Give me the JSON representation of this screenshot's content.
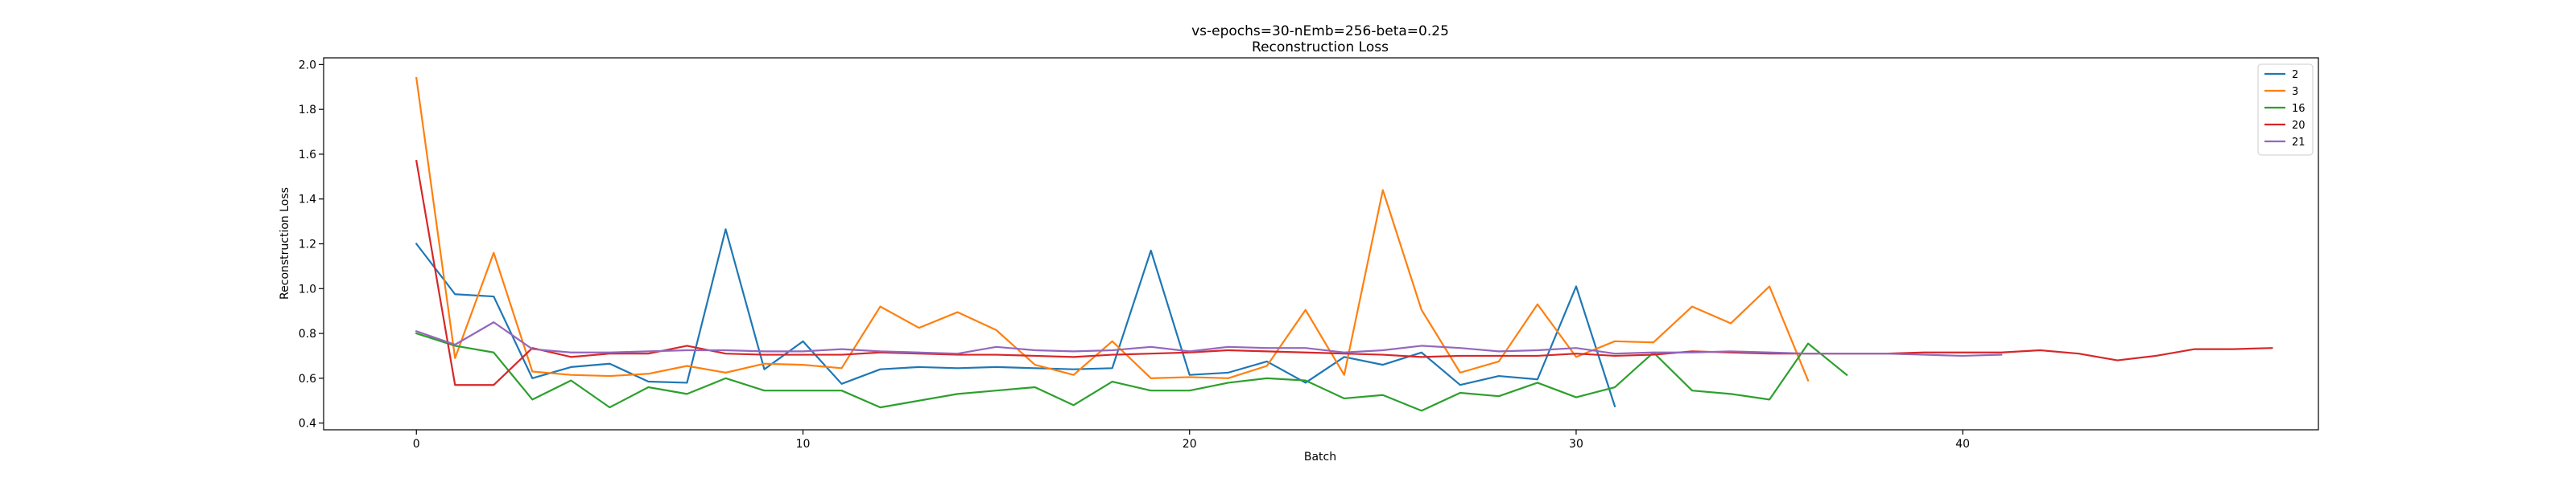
{
  "chart_data": {
    "type": "line",
    "title": "vs-epochs=30-nEmb=256-beta=0.25",
    "subtitle": "Reconstruction Loss",
    "xlabel": "Batch",
    "ylabel": "Reconstruction Loss",
    "xlim": [
      -2.4,
      49.2
    ],
    "ylim": [
      0.37,
      2.03
    ],
    "xticks": [
      0,
      10,
      20,
      30,
      40
    ],
    "yticks": [
      0.4,
      0.6,
      0.8,
      1.0,
      1.2,
      1.4,
      1.6,
      1.8,
      2.0
    ],
    "ytick_labels": [
      "0.4",
      "0.6",
      "0.8",
      "1.0",
      "1.2",
      "1.4",
      "1.6",
      "1.8",
      "2.0"
    ],
    "grid": false,
    "legend_position": "top-right",
    "series": [
      {
        "name": "2",
        "color": "#1f77b4",
        "values": [
          1.2,
          0.975,
          0.965,
          0.6,
          0.65,
          0.665,
          0.585,
          0.58,
          1.265,
          0.64,
          0.765,
          0.575,
          0.64,
          0.65,
          0.645,
          0.65,
          0.645,
          0.64,
          0.645,
          1.17,
          0.615,
          0.625,
          0.675,
          0.58,
          0.695,
          0.66,
          0.715,
          0.57,
          0.61,
          0.595,
          1.01,
          0.475
        ]
      },
      {
        "name": "3",
        "color": "#ff7f0e",
        "values": [
          1.94,
          0.69,
          1.16,
          0.63,
          0.615,
          0.61,
          0.62,
          0.655,
          0.625,
          0.665,
          0.66,
          0.645,
          0.92,
          0.825,
          0.895,
          0.815,
          0.66,
          0.615,
          0.765,
          0.6,
          0.605,
          0.6,
          0.655,
          0.905,
          0.615,
          1.44,
          0.905,
          0.625,
          0.675,
          0.93,
          0.695,
          0.765,
          0.76,
          0.92,
          0.845,
          1.01,
          0.59
        ]
      },
      {
        "name": "16",
        "color": "#2ca02c",
        "values": [
          0.8,
          0.745,
          0.715,
          0.505,
          0.59,
          0.47,
          0.56,
          0.53,
          0.6,
          0.545,
          0.545,
          0.545,
          0.47,
          0.5,
          0.53,
          0.545,
          0.56,
          0.48,
          0.585,
          0.545,
          0.545,
          0.58,
          0.6,
          0.59,
          0.51,
          0.525,
          0.455,
          0.535,
          0.52,
          0.58,
          0.515,
          0.56,
          0.715,
          0.545,
          0.53,
          0.505,
          0.755,
          0.615
        ]
      },
      {
        "name": "20",
        "color": "#d62728",
        "values": [
          1.57,
          0.57,
          0.57,
          0.735,
          0.695,
          0.71,
          0.71,
          0.745,
          0.71,
          0.705,
          0.705,
          0.705,
          0.715,
          0.71,
          0.705,
          0.705,
          0.7,
          0.695,
          0.705,
          0.71,
          0.715,
          0.725,
          0.72,
          0.715,
          0.71,
          0.705,
          0.695,
          0.7,
          0.7,
          0.7,
          0.71,
          0.7,
          0.705,
          0.72,
          0.715,
          0.71,
          0.71,
          0.71,
          0.71,
          0.715,
          0.715,
          0.715,
          0.725,
          0.71,
          0.68,
          0.7,
          0.73,
          0.73,
          0.735
        ]
      },
      {
        "name": "21",
        "color": "#9467bd",
        "values": [
          0.81,
          0.75,
          0.85,
          0.73,
          0.715,
          0.715,
          0.72,
          0.725,
          0.725,
          0.72,
          0.72,
          0.73,
          0.72,
          0.715,
          0.71,
          0.74,
          0.725,
          0.72,
          0.725,
          0.74,
          0.72,
          0.74,
          0.735,
          0.735,
          0.715,
          0.725,
          0.745,
          0.735,
          0.72,
          0.725,
          0.735,
          0.71,
          0.715,
          0.715,
          0.72,
          0.715,
          0.71,
          0.71,
          0.71,
          0.705,
          0.7,
          0.705
        ]
      }
    ]
  }
}
